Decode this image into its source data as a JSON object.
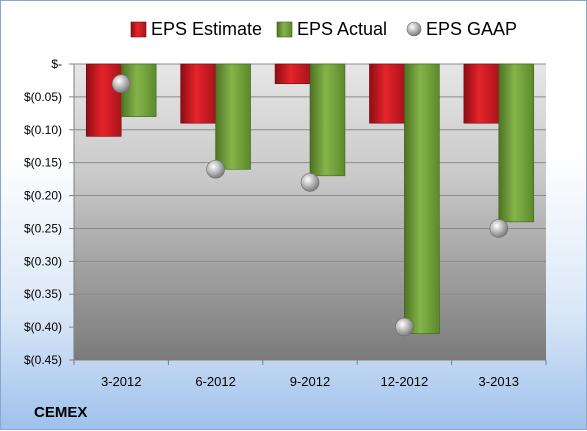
{
  "company": "CEMEX",
  "chart_data": {
    "type": "bar",
    "categories": [
      "3-2012",
      "6-2012",
      "9-2012",
      "12-2012",
      "3-2013"
    ],
    "series": [
      {
        "name": "EPS Estimate",
        "kind": "bar",
        "color": "#e01b24",
        "values": [
          -0.11,
          -0.09,
          -0.03,
          -0.09,
          -0.09
        ]
      },
      {
        "name": "EPS Actual",
        "kind": "bar",
        "color": "#76a83a",
        "values": [
          -0.08,
          -0.16,
          -0.17,
          -0.41,
          -0.24
        ]
      },
      {
        "name": "EPS GAAP",
        "kind": "marker",
        "color": "#b8b8b8",
        "values": [
          -0.03,
          -0.16,
          -0.18,
          -0.4,
          -0.25
        ]
      }
    ],
    "ylim": [
      -0.45,
      0
    ],
    "yticks": [
      0,
      -0.05,
      -0.1,
      -0.15,
      -0.2,
      -0.25,
      -0.3,
      -0.35,
      -0.4,
      -0.45
    ],
    "ytick_labels": [
      "$-",
      "$(0.05)",
      "$(0.10)",
      "$(0.15)",
      "$(0.20)",
      "$(0.25)",
      "$(0.30)",
      "$(0.35)",
      "$(0.40)",
      "$(0.45)"
    ],
    "grid": true,
    "legend": "top"
  }
}
